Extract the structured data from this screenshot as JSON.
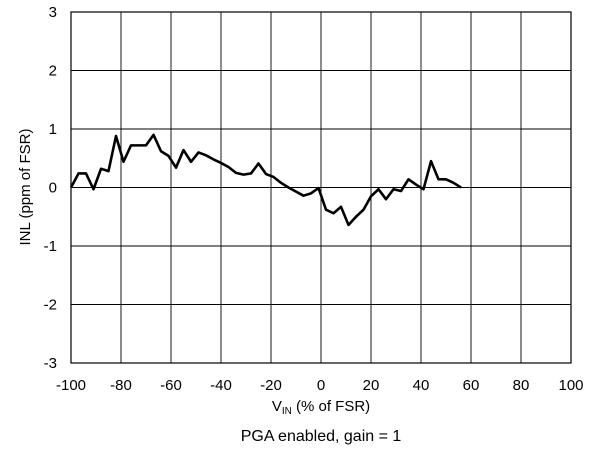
{
  "chart_data": {
    "type": "line",
    "caption": "PGA enabled, gain = 1",
    "xlabel_main": "V",
    "xlabel_sub": "IN",
    "xlabel_rest": " (% of FSR)",
    "ylabel": "INL (ppm of FSR)",
    "xlim": [
      -100,
      100
    ],
    "ylim": [
      -3,
      3
    ],
    "grid": true,
    "x_ticks": [
      -100,
      -80,
      -60,
      -40,
      -20,
      0,
      20,
      40,
      60,
      80,
      100
    ],
    "y_ticks": [
      -3,
      -2,
      -1,
      0,
      1,
      2,
      3
    ],
    "series": [
      {
        "color": "#000000",
        "points": [
          [
            -100,
            0.0
          ],
          [
            -97,
            0.24
          ],
          [
            -94,
            0.24
          ],
          [
            -91,
            -0.03
          ],
          [
            -88,
            0.32
          ],
          [
            -85,
            0.28
          ],
          [
            -82,
            0.88
          ],
          [
            -79,
            0.44
          ],
          [
            -76,
            0.72
          ],
          [
            -73,
            0.72
          ],
          [
            -70,
            0.72
          ],
          [
            -67,
            0.9
          ],
          [
            -64,
            0.62
          ],
          [
            -61,
            0.54
          ],
          [
            -58,
            0.34
          ],
          [
            -55,
            0.64
          ],
          [
            -52,
            0.44
          ],
          [
            -49,
            0.6
          ],
          [
            -46,
            0.55
          ],
          [
            -43,
            0.48
          ],
          [
            -40,
            0.42
          ],
          [
            -37,
            0.35
          ],
          [
            -34,
            0.25
          ],
          [
            -31,
            0.22
          ],
          [
            -28,
            0.24
          ],
          [
            -25,
            0.41
          ],
          [
            -22,
            0.23
          ],
          [
            -19,
            0.18
          ],
          [
            -16,
            0.08
          ],
          [
            -13,
            0.0
          ],
          [
            -10,
            -0.07
          ],
          [
            -7,
            -0.14
          ],
          [
            -4,
            -0.1
          ],
          [
            -1,
            -0.01
          ],
          [
            2,
            -0.38
          ],
          [
            5,
            -0.44
          ],
          [
            8,
            -0.33
          ],
          [
            11,
            -0.64
          ],
          [
            14,
            -0.5
          ],
          [
            17,
            -0.38
          ],
          [
            20,
            -0.15
          ],
          [
            23,
            -0.03
          ],
          [
            26,
            -0.2
          ],
          [
            29,
            -0.03
          ],
          [
            32,
            -0.06
          ],
          [
            35,
            0.14
          ],
          [
            38,
            0.05
          ],
          [
            41,
            -0.03
          ],
          [
            44,
            0.45
          ],
          [
            47,
            0.14
          ],
          [
            50,
            0.14
          ],
          [
            53,
            0.08
          ],
          [
            56,
            0.0
          ]
        ]
      }
    ]
  }
}
